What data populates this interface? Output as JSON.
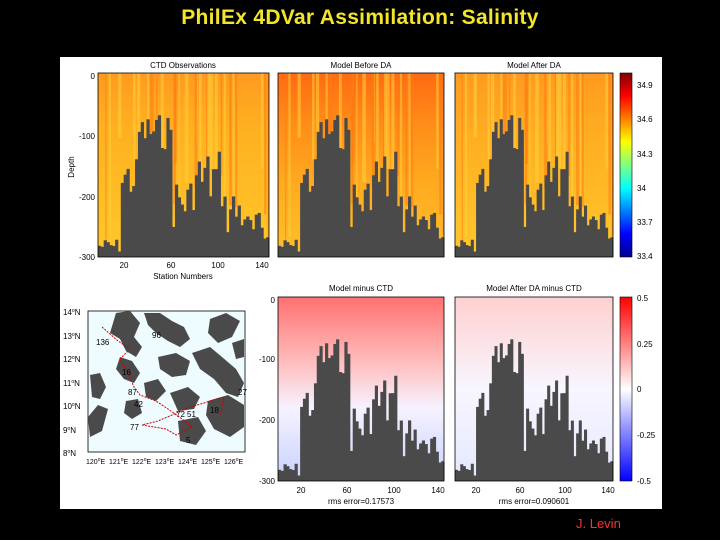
{
  "slide": {
    "title": "PhilEx 4DVar Assimilation: Salinity",
    "credit": "J. Levin"
  },
  "colors": {
    "title": "#f2e52a",
    "credit": "#ff3030",
    "background": "#000000",
    "terrain": "#4a4a4a"
  },
  "top_row": {
    "panel_titles": [
      "CTD Observations",
      "Model Before DA",
      "Model After DA"
    ],
    "y_label": "Depth",
    "y_ticks": [
      "0",
      "-100",
      "-200",
      "-300"
    ],
    "x_label": "Station Numbers",
    "x_ticks": [
      "20",
      "60",
      "100",
      "140"
    ],
    "colorbar_ticks": [
      "34.9",
      "34.6",
      "34.3",
      "34",
      "33.7",
      "33.4"
    ]
  },
  "bottom_row": {
    "panel_titles": [
      "Model minus CTD",
      "Model After DA minus CTD"
    ],
    "y_ticks": [
      "0",
      "-100",
      "-200",
      "-300"
    ],
    "x_ticks": [
      "20",
      "60",
      "100",
      "140"
    ],
    "rms_labels": [
      "rms error=0.17573",
      "rms error=0.090601"
    ],
    "colorbar_ticks": [
      "0.5",
      "0.25",
      "0",
      "-0.25",
      "-0.5"
    ]
  },
  "map": {
    "lat_labels": [
      "14",
      "13",
      "12",
      "11",
      "10",
      "9",
      "8"
    ],
    "lat_suffix": "N",
    "lon_labels": [
      "120",
      "121",
      "122",
      "123",
      "124",
      "125",
      "126"
    ],
    "lon_suffix": "E",
    "station_labels": [
      "136",
      "96",
      "16",
      "87",
      "27",
      "42",
      "72",
      "51",
      "18",
      "77",
      "5"
    ]
  },
  "chart_data": [
    {
      "type": "heatmap",
      "title": "CTD Observations",
      "xlabel": "Station Numbers",
      "ylabel": "Depth",
      "xlim": [
        1,
        145
      ],
      "ylim": [
        -300,
        0
      ],
      "colorbar": {
        "min": 33.4,
        "max": 34.9,
        "ticks": [
          34.9,
          34.6,
          34.3,
          34.0,
          33.7,
          33.4
        ]
      }
    },
    {
      "type": "heatmap",
      "title": "Model Before DA",
      "xlim": [
        1,
        145
      ],
      "ylim": [
        -300,
        0
      ],
      "colorbar": {
        "min": 33.4,
        "max": 34.9
      }
    },
    {
      "type": "heatmap",
      "title": "Model After DA",
      "xlim": [
        1,
        145
      ],
      "ylim": [
        -300,
        0
      ],
      "colorbar": {
        "min": 33.4,
        "max": 34.9
      }
    },
    {
      "type": "heatmap",
      "title": "Model minus CTD",
      "xlim": [
        1,
        145
      ],
      "ylim": [
        -300,
        0
      ],
      "rms_error": 0.17573,
      "colorbar": {
        "min": -0.5,
        "max": 0.5,
        "ticks": [
          0.5,
          0.25,
          0,
          -0.25,
          -0.5
        ]
      }
    },
    {
      "type": "heatmap",
      "title": "Model After DA minus CTD",
      "xlim": [
        1,
        145
      ],
      "ylim": [
        -300,
        0
      ],
      "rms_error": 0.090601,
      "colorbar": {
        "min": -0.5,
        "max": 0.5
      }
    }
  ]
}
